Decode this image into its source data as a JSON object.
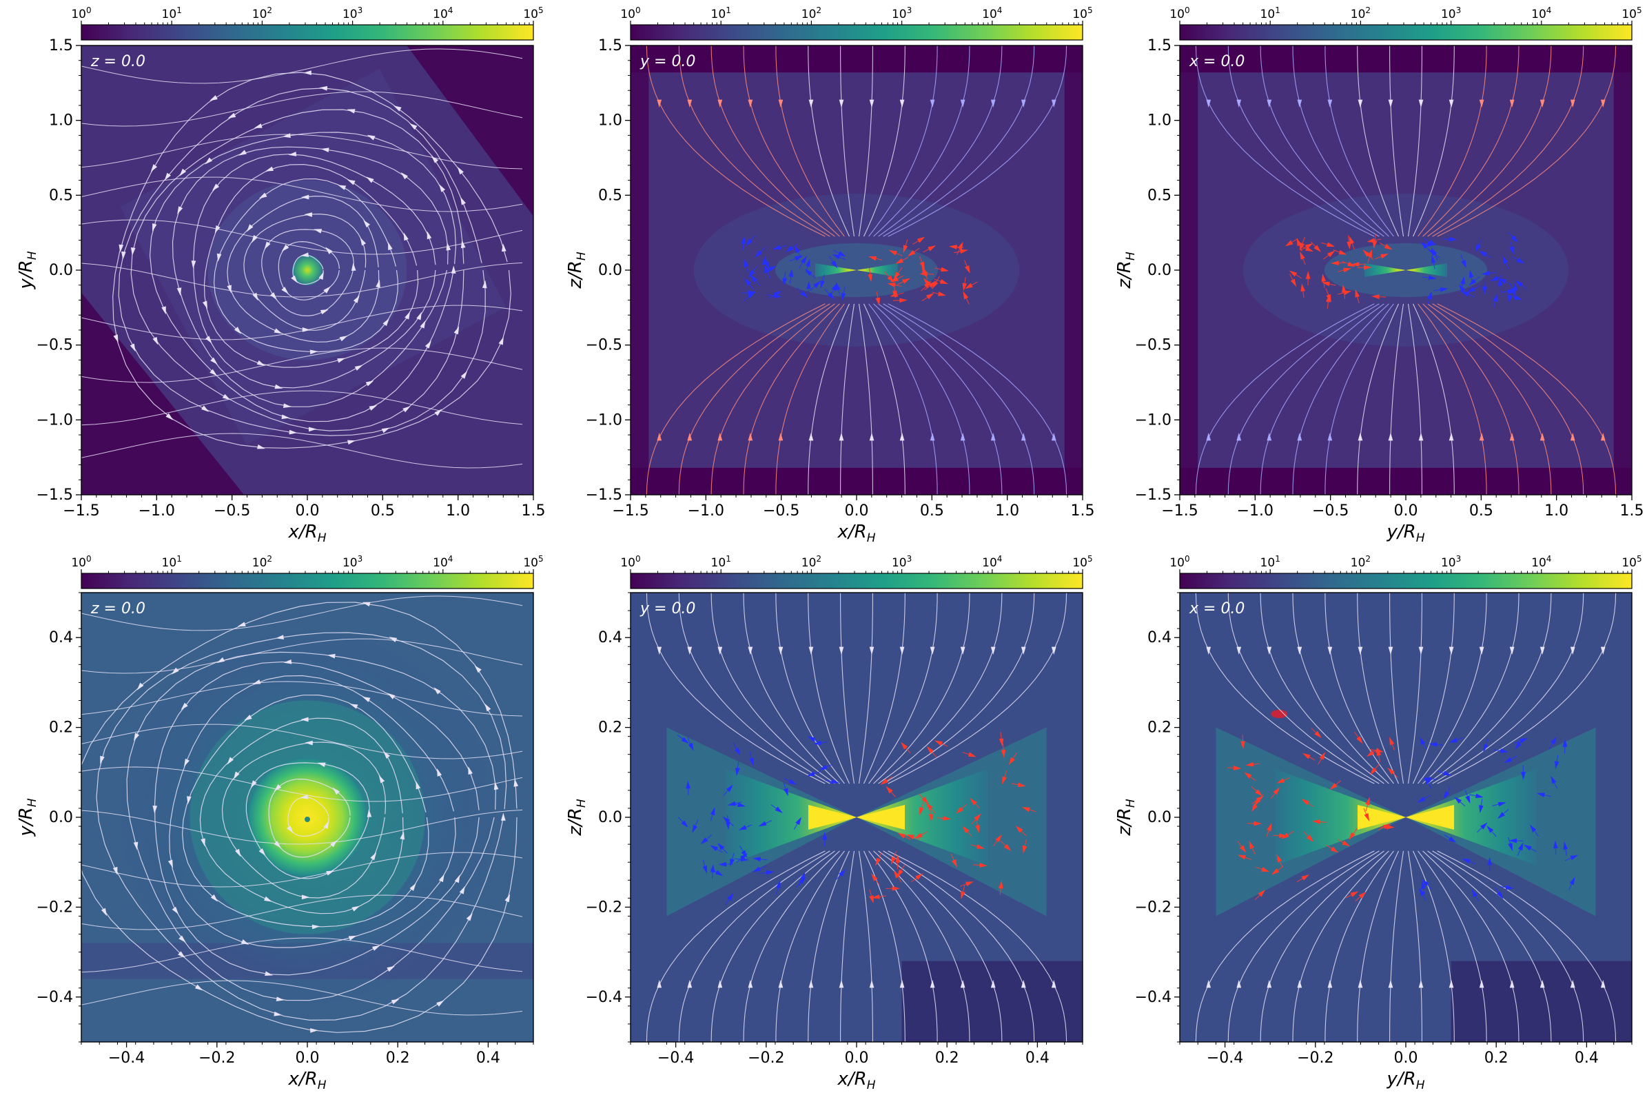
{
  "figure": {
    "colorbar": {
      "scale": "log",
      "vmin": 1,
      "vmax": 100000,
      "colormap": "viridis",
      "tick_labels": [
        {
          "base": "10",
          "exp": "0"
        },
        {
          "base": "10",
          "exp": "1"
        },
        {
          "base": "10",
          "exp": "2"
        },
        {
          "base": "10",
          "exp": "3"
        },
        {
          "base": "10",
          "exp": "4"
        },
        {
          "base": "10",
          "exp": "5"
        }
      ]
    },
    "colors": {
      "background_field": "#46307a",
      "low_density": "#440154",
      "streamline_neutral": "#e8e2f5",
      "streamline_red": "#ff3a2a",
      "streamline_blue": "#2330ff"
    }
  },
  "chart_data": [
    {
      "type": "heatmap",
      "row": 0,
      "col": 0,
      "slice_label": "z = 0.0",
      "xlabel": "x/R_H",
      "ylabel": "y/R_H",
      "xlim": [
        -1.5,
        1.5
      ],
      "ylim": [
        -1.5,
        1.5
      ],
      "xticks": [
        "−1.5",
        "−1.0",
        "−0.5",
        "0.0",
        "0.5",
        "1.0",
        "1.5"
      ],
      "yticks": [
        "1.5",
        "1.0",
        "0.5",
        "0.0",
        "−0.5",
        "−1.0",
        "−1.5"
      ],
      "view": "midplane",
      "core_peak_density": 300
    },
    {
      "type": "heatmap",
      "row": 0,
      "col": 1,
      "slice_label": "y = 0.0",
      "xlabel": "x/R_H",
      "ylabel": "z/R_H",
      "xlim": [
        -1.5,
        1.5
      ],
      "ylim": [
        -1.5,
        1.5
      ],
      "xticks": [
        "−1.5",
        "−1.0",
        "−0.5",
        "0.0",
        "0.5",
        "1.0",
        "1.5"
      ],
      "yticks": [
        "1.5",
        "1.0",
        "0.5",
        "0.0",
        "−0.5",
        "−1.0",
        "−1.5"
      ],
      "view": "vertical",
      "core_peak_density": 1000
    },
    {
      "type": "heatmap",
      "row": 0,
      "col": 2,
      "slice_label": "x = 0.0",
      "xlabel": "y/R_H",
      "ylabel": "z/R_H",
      "xlim": [
        -1.5,
        1.5
      ],
      "ylim": [
        -1.5,
        1.5
      ],
      "xticks": [
        "−1.5",
        "−1.0",
        "−0.5",
        "0.0",
        "0.5",
        "1.0",
        "1.5"
      ],
      "yticks": [
        "1.5",
        "1.0",
        "0.5",
        "0.0",
        "−0.5",
        "−1.0",
        "−1.5"
      ],
      "view": "vertical-mirrored",
      "core_peak_density": 1000
    },
    {
      "type": "heatmap",
      "row": 1,
      "col": 0,
      "slice_label": "z = 0.0",
      "xlabel": "x/R_H",
      "ylabel": "y/R_H",
      "xlim": [
        -0.5,
        0.5
      ],
      "ylim": [
        -0.5,
        0.5
      ],
      "xticks": [
        "−0.4",
        "−0.2",
        "0.0",
        "0.2",
        "0.4"
      ],
      "yticks": [
        "0.4",
        "0.2",
        "0.0",
        "−0.2",
        "−0.4"
      ],
      "view": "midplane",
      "core_peak_density": 100000
    },
    {
      "type": "heatmap",
      "row": 1,
      "col": 1,
      "slice_label": "y = 0.0",
      "xlabel": "x/R_H",
      "ylabel": "z/R_H",
      "xlim": [
        -0.5,
        0.5
      ],
      "ylim": [
        -0.5,
        0.5
      ],
      "xticks": [
        "−0.4",
        "−0.2",
        "0.0",
        "0.2",
        "0.4"
      ],
      "yticks": [
        "0.4",
        "0.2",
        "0.0",
        "−0.2",
        "−0.4"
      ],
      "view": "vertical",
      "core_peak_density": 100000
    },
    {
      "type": "heatmap",
      "row": 1,
      "col": 2,
      "slice_label": "x = 0.0",
      "xlabel": "y/R_H",
      "ylabel": "z/R_H",
      "xlim": [
        -0.5,
        0.5
      ],
      "ylim": [
        -0.5,
        0.5
      ],
      "xticks": [
        "−0.4",
        "−0.2",
        "0.0",
        "0.2",
        "0.4"
      ],
      "yticks": [
        "0.4",
        "0.2",
        "0.0",
        "−0.2",
        "−0.4"
      ],
      "view": "vertical-mirrored",
      "core_peak_density": 100000
    }
  ]
}
